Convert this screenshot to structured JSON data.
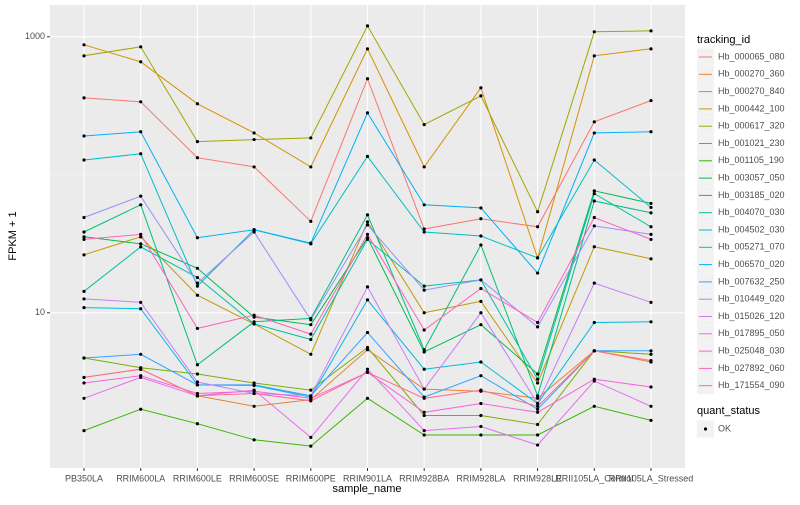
{
  "chart_data": {
    "type": "line",
    "x_label": "sample_name",
    "y_label": "FPKM + 1",
    "categories": [
      "PB350LA",
      "RRIM600LA",
      "RRIM600LE",
      "RRIM600SE",
      "RRIM600PE",
      "RRIM901LA",
      "RRIM928BA",
      "RRIM928LA",
      "RRIM928LE",
      "RRII105LA_Control",
      "RRII105LA_Stressed"
    ],
    "log_scale": true,
    "ylim": [
      0.75,
      1700
    ],
    "yticks": [
      1000,
      10
    ],
    "grid": true,
    "legend": {
      "title": "tracking_id",
      "position": "right"
    },
    "point_legend": {
      "title": "quant_status",
      "labels": [
        "OK"
      ],
      "color": "#000000"
    },
    "series": [
      {
        "name": "Hb_000065_080",
        "color": "#F8766D",
        "values": [
          361,
          338,
          133,
          114,
          46,
          497,
          40.5,
          48,
          42,
          242,
          345
        ]
      },
      {
        "name": "Hb_000270_360",
        "color": "#EA8331",
        "values": [
          3.4,
          3.9,
          2.5,
          2.1,
          2.35,
          5.4,
          2.8,
          2.7,
          2.4,
          5.3,
          4.4
        ]
      },
      {
        "name": "Hb_000270_840",
        "color": "#D89000",
        "values": [
          875,
          659,
          327,
          201,
          114,
          818,
          114,
          427,
          25,
          728,
          818
        ]
      },
      {
        "name": "Hb_000442_100",
        "color": "#C09B00",
        "values": [
          26.3,
          35.5,
          13.4,
          8.3,
          5.0,
          45.6,
          10,
          12.1,
          3.1,
          30.1,
          24.6
        ]
      },
      {
        "name": "Hb_000617_320",
        "color": "#A3A500",
        "values": [
          728,
          846,
          174,
          180,
          185,
          1200,
          231,
          373,
          54,
          1087,
          1105
        ]
      },
      {
        "name": "Hb_001021_230",
        "color": "#7CAE00",
        "values": [
          4.7,
          4.0,
          3.6,
          3.1,
          2.75,
          5.6,
          1.8,
          1.8,
          1.55,
          5.3,
          5.0
        ]
      },
      {
        "name": "Hb_001105_190",
        "color": "#39B600",
        "values": [
          1.4,
          2.0,
          1.57,
          1.2,
          1.08,
          2.4,
          1.3,
          1.3,
          1.3,
          2.1,
          1.66
        ]
      },
      {
        "name": "Hb_003057_050",
        "color": "#00BB4E",
        "values": [
          35.5,
          31.6,
          21,
          9.3,
          8.2,
          35,
          5.2,
          8.2,
          3.6,
          76.5,
          62
        ]
      },
      {
        "name": "Hb_003185_020",
        "color": "#00BF7D",
        "values": [
          38.5,
          60.6,
          4.2,
          8.6,
          9.1,
          51.2,
          5.4,
          31,
          2.5,
          64.6,
          53
        ]
      },
      {
        "name": "Hb_004070_030",
        "color": "#00C1A3",
        "values": [
          14.3,
          30,
          18,
          8.3,
          6.4,
          34,
          15.6,
          17.3,
          3.3,
          73,
          42
        ]
      },
      {
        "name": "Hb_004502_030",
        "color": "#00BFC4",
        "values": [
          128,
          142,
          15.6,
          40,
          31.6,
          136,
          38.5,
          36,
          25,
          128,
          58
        ]
      },
      {
        "name": "Hb_005271_070",
        "color": "#00BAE0",
        "values": [
          10.9,
          10.7,
          3.0,
          2.97,
          2.45,
          12.4,
          3.9,
          4.4,
          2.2,
          8.5,
          8.6
        ]
      },
      {
        "name": "Hb_006570_020",
        "color": "#00B0F6",
        "values": [
          191,
          205,
          35,
          40,
          32,
          281,
          60.6,
          57.5,
          19.4,
          201,
          205
        ]
      },
      {
        "name": "Hb_007632_250",
        "color": "#35A2FF",
        "values": [
          4.7,
          5.0,
          3.0,
          3.0,
          2.5,
          7.2,
          2.45,
          3.5,
          2.0,
          5.3,
          5.3
        ]
      },
      {
        "name": "Hb_010449_020",
        "color": "#9590FF",
        "values": [
          49,
          70,
          16.4,
          38.5,
          8.9,
          43.3,
          14.6,
          17.3,
          7.9,
          42.6,
          37
        ]
      },
      {
        "name": "Hb_015026_120",
        "color": "#C77CFF",
        "values": [
          12.6,
          11.9,
          3.15,
          2.6,
          2.5,
          15.4,
          2.8,
          10,
          2.2,
          16.4,
          11.9
        ]
      },
      {
        "name": "Hb_017895_050",
        "color": "#E76BF3",
        "values": [
          2.4,
          3.4,
          2.5,
          2.75,
          1.25,
          3.9,
          1.4,
          1.5,
          1.1,
          3.2,
          2.1
        ]
      },
      {
        "name": "Hb_025048_030",
        "color": "#FA62DB",
        "values": [
          3.1,
          3.5,
          2.6,
          2.7,
          2.4,
          3.7,
          1.9,
          2.2,
          1.9,
          3.3,
          2.9
        ]
      },
      {
        "name": "Hb_027892_060",
        "color": "#FF62BC",
        "values": [
          34,
          37,
          7.7,
          9.6,
          7.0,
          37,
          7.5,
          15,
          8.5,
          49,
          34
        ]
      },
      {
        "name": "Hb_171554_090",
        "color": "#FF6C91",
        "values": [
          3.4,
          3.9,
          2.5,
          2.6,
          2.3,
          3.7,
          2.4,
          2.75,
          2.1,
          5.3,
          4.5
        ]
      }
    ]
  }
}
